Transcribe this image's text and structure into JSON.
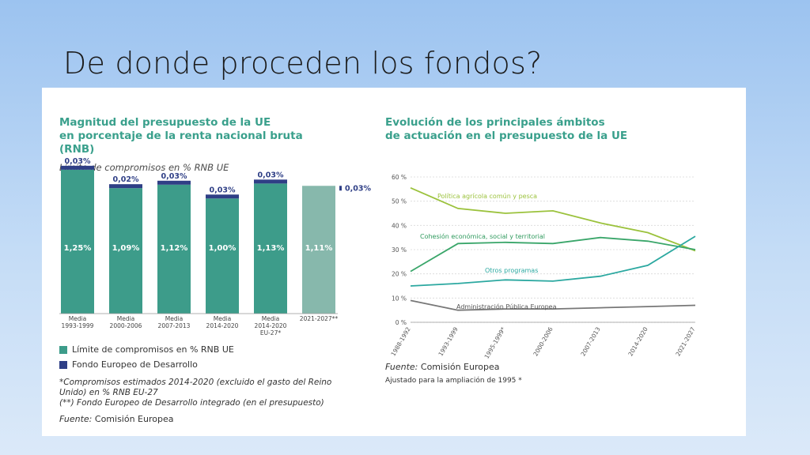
{
  "slide": {
    "title": "De donde proceden los fondos?"
  },
  "left_panel": {
    "heading_lines": [
      "Magnitud del presupuesto de la UE",
      "en porcentaje de la renta nacional bruta",
      "(RNB)"
    ],
    "subheading": "Límite de compromisos en % RNB UE",
    "legend": [
      {
        "label": "Límite de compromisos en % RNB UE",
        "color": "#3d9c8a"
      },
      {
        "label": "Fondo Europeo de Desarrollo",
        "color": "#2f3f86"
      }
    ],
    "notes": [
      "*Compromisos estimados 2014-2020 (excluido el gasto del Reino",
      "Unido) en % RNB EU-27",
      "(**) Fondo Europeo de Desarrollo integrado (en el presupuesto)"
    ],
    "source_label": "Fuente:",
    "source_text": " Comisión Europea"
  },
  "right_panel": {
    "heading_lines": [
      "Evolución de los principales ámbitos",
      "de actuación en el presupuesto de la UE"
    ],
    "source_label": "Fuente:",
    "source_text": " Comisión Europea",
    "adjust_note": "Ajustado para la ampliación de 1995 *"
  },
  "chart_data": [
    {
      "type": "bar",
      "title": "Magnitud del presupuesto de la UE en porcentaje de la renta nacional bruta (RNB)",
      "ylabel": "Límite de compromisos en % RNB UE",
      "categories": [
        [
          "Media",
          "1993-1999"
        ],
        [
          "Media",
          "2000-2006"
        ],
        [
          "Media",
          "2007-2013"
        ],
        [
          "Media",
          "2014-2020"
        ],
        [
          "Media",
          "2014-2020",
          "EU-27*"
        ],
        [
          "2021-2027**"
        ]
      ],
      "series": [
        {
          "name": "Límite de compromisos en % RNB UE",
          "values": [
            1.25,
            1.09,
            1.12,
            1.0,
            1.13,
            1.11
          ],
          "labels": [
            "1,25%",
            "1,09%",
            "1,12%",
            "1,00%",
            "1,13%",
            "1,11%"
          ],
          "color": "#3d9c8a"
        },
        {
          "name": "Fondo Europeo de Desarrollo",
          "values": [
            0.03,
            0.02,
            0.03,
            0.03,
            0.03,
            0.03
          ],
          "labels": [
            "0,03%",
            "0,02%",
            "0,03%",
            "0,03%",
            "0,03%",
            "0,03%"
          ],
          "color": "#2f3f86"
        }
      ],
      "last_bar_color": "#87b8ac",
      "ylim": [
        0,
        1.4
      ]
    },
    {
      "type": "line",
      "title": "Evolución de los principales ámbitos de actuación en el presupuesto de la UE",
      "x": [
        "1988-1992",
        "1993-1999",
        "1995-1999*",
        "2000-2006",
        "2007-2013",
        "2014-2020",
        "2021-2027"
      ],
      "y_ticks": [
        "0 %",
        "10 %",
        "20 %",
        "30 %",
        "40 %",
        "50 %",
        "60 %"
      ],
      "ylim": [
        0,
        60
      ],
      "series": [
        {
          "name": "Política agrícola común y pesca",
          "values": [
            55.5,
            47,
            45,
            46,
            41,
            37,
            29.5
          ],
          "color": "#9bc23c"
        },
        {
          "name": "Cohesión económica, social y territorial",
          "values": [
            21,
            32.5,
            33,
            32.5,
            35,
            33.5,
            30
          ],
          "color": "#3aa66a"
        },
        {
          "name": "Otros programas",
          "values": [
            15,
            16,
            17.5,
            17,
            19,
            23.5,
            35.5
          ],
          "color": "#2ba8a0"
        },
        {
          "name": "Administración Pública Europea",
          "values": [
            9,
            5,
            5.5,
            5.5,
            6,
            6.5,
            7
          ],
          "color": "#777777"
        }
      ]
    }
  ]
}
